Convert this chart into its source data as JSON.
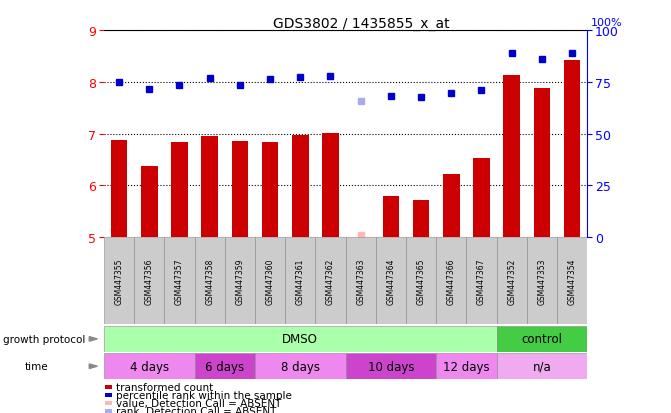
{
  "title": "GDS3802 / 1435855_x_at",
  "samples": [
    "GSM447355",
    "GSM447356",
    "GSM447357",
    "GSM447358",
    "GSM447359",
    "GSM447360",
    "GSM447361",
    "GSM447362",
    "GSM447363",
    "GSM447364",
    "GSM447365",
    "GSM447366",
    "GSM447367",
    "GSM447352",
    "GSM447353",
    "GSM447354"
  ],
  "bar_values": [
    6.87,
    6.38,
    6.84,
    6.95,
    6.85,
    6.83,
    6.97,
    7.02,
    null,
    5.79,
    5.72,
    6.22,
    6.52,
    8.14,
    7.88,
    8.42
  ],
  "bar_absent": [
    false,
    false,
    false,
    false,
    false,
    false,
    false,
    false,
    true,
    false,
    false,
    false,
    false,
    false,
    false,
    false
  ],
  "rank_values": [
    8.0,
    7.87,
    7.93,
    8.08,
    7.93,
    8.05,
    8.1,
    8.12,
    7.62,
    7.73,
    7.7,
    7.78,
    7.85,
    8.55,
    8.45,
    8.55
  ],
  "rank_absent": [
    false,
    false,
    false,
    false,
    false,
    false,
    false,
    false,
    true,
    false,
    false,
    false,
    false,
    false,
    false,
    false
  ],
  "ylim": [
    5,
    9
  ],
  "yticks": [
    5,
    6,
    7,
    8,
    9
  ],
  "right_ylim": [
    0,
    100
  ],
  "right_yticks": [
    0,
    25,
    50,
    75,
    100
  ],
  "bar_color": "#cc0000",
  "bar_absent_color": "#ffb6b6",
  "rank_color": "#0000cc",
  "rank_absent_color": "#aaaaee",
  "growth_protocol": [
    {
      "label": "DMSO",
      "start": 0,
      "end": 13,
      "color": "#aaffaa"
    },
    {
      "label": "control",
      "start": 13,
      "end": 16,
      "color": "#44cc44"
    }
  ],
  "time_groups": [
    {
      "label": "4 days",
      "start": 0,
      "end": 3,
      "color": "#ee88ee"
    },
    {
      "label": "6 days",
      "start": 3,
      "end": 5,
      "color": "#cc44cc"
    },
    {
      "label": "8 days",
      "start": 5,
      "end": 8,
      "color": "#ee88ee"
    },
    {
      "label": "10 days",
      "start": 8,
      "end": 11,
      "color": "#cc44cc"
    },
    {
      "label": "12 days",
      "start": 11,
      "end": 13,
      "color": "#ee88ee"
    },
    {
      "label": "n/a",
      "start": 13,
      "end": 16,
      "color": "#f0aaf0"
    }
  ],
  "legend_items": [
    {
      "label": "transformed count",
      "color": "#cc0000"
    },
    {
      "label": "percentile rank within the sample",
      "color": "#0000cc"
    },
    {
      "label": "value, Detection Call = ABSENT",
      "color": "#ffb6b6"
    },
    {
      "label": "rank, Detection Call = ABSENT",
      "color": "#aaaaee"
    }
  ]
}
